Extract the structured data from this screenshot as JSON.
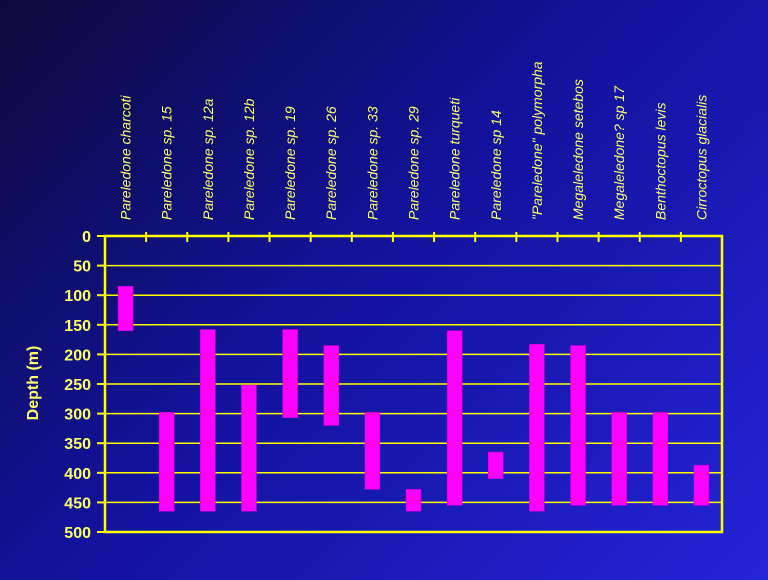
{
  "chart_data": {
    "type": "bar",
    "orientation": "floating-range",
    "ylabel": "Depth (m)",
    "ylim": [
      0,
      500
    ],
    "yticks": [
      0,
      50,
      100,
      150,
      200,
      250,
      300,
      350,
      400,
      450,
      500
    ],
    "y_inverted": true,
    "grid": "horizontal",
    "categories": [
      "Pareledone charcoti",
      "Pareledone sp. 15",
      "Pareledone sp. 12a",
      "Pareledone sp. 12b",
      "Pareledone sp. 19",
      "Pareledone sp. 26",
      "Pareledone sp. 33",
      "Pareledone sp. 29",
      "Pareledone turqueti",
      "Pareledone sp 14",
      "\"Pareledone\" polymorpha",
      "Megaleledone setebos",
      "Megaleledone? sp 17",
      "Benthoctopus levis",
      "Cirroctopus glacialis"
    ],
    "ranges": [
      [
        85,
        160
      ],
      [
        298,
        465
      ],
      [
        158,
        465
      ],
      [
        252,
        465
      ],
      [
        158,
        307
      ],
      [
        185,
        320
      ],
      [
        298,
        428
      ],
      [
        428,
        465
      ],
      [
        160,
        455
      ],
      [
        365,
        410
      ],
      [
        183,
        465
      ],
      [
        185,
        455
      ],
      [
        298,
        455
      ],
      [
        298,
        455
      ],
      [
        387,
        455
      ]
    ],
    "colors": {
      "bar": "#ff00ff",
      "axis": "#ffff00",
      "text": "#ffff66"
    }
  }
}
